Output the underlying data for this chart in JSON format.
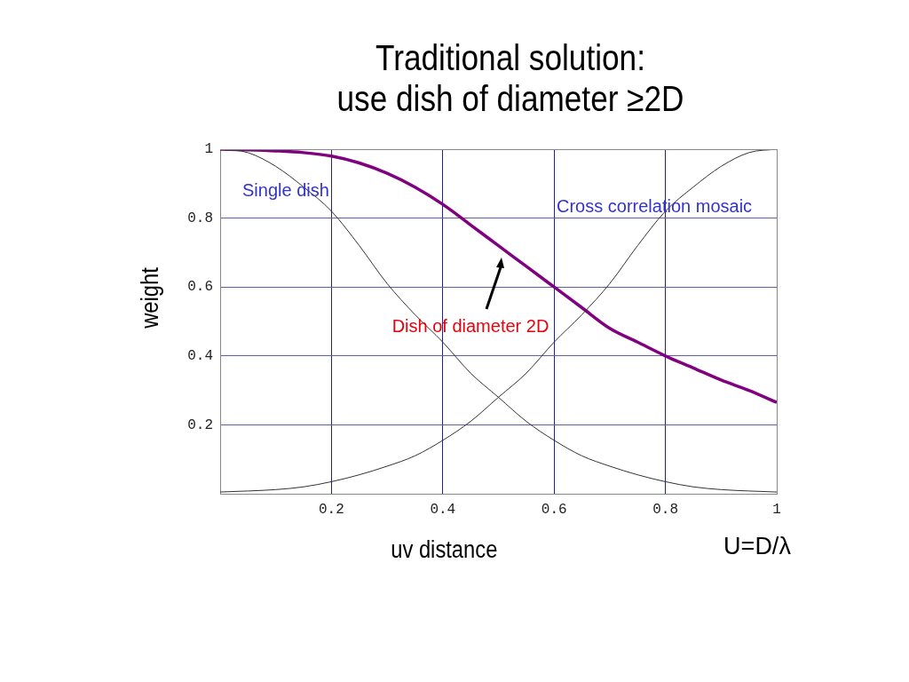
{
  "chart_data": {
    "type": "line",
    "title": "Traditional solution:\nuse dish of diameter ≥2D",
    "xlabel": "uv distance",
    "ylabel": "weight",
    "x": [
      0,
      0.05,
      0.1,
      0.15,
      0.2,
      0.25,
      0.3,
      0.35,
      0.4,
      0.45,
      0.5,
      0.55,
      0.6,
      0.65,
      0.7,
      0.75,
      0.8,
      0.85,
      0.9,
      0.95,
      1
    ],
    "series": [
      {
        "color": "#333333",
        "values": [
          1,
          0.99,
          0.95,
          0.89,
          0.82,
          0.72,
          0.61,
          0.52,
          0.44,
          0.35,
          0.28,
          0.21,
          0.155,
          0.11,
          0.08,
          0.055,
          0.035,
          0.02,
          0.012,
          0.008,
          0.005
        ]
      },
      {
        "color": "#333333",
        "values": [
          0.005,
          0.008,
          0.012,
          0.02,
          0.035,
          0.055,
          0.08,
          0.11,
          0.155,
          0.21,
          0.28,
          0.35,
          0.44,
          0.52,
          0.61,
          0.72,
          0.82,
          0.89,
          0.95,
          0.99,
          1
        ]
      },
      {
        "color": "#800080",
        "values": [
          1,
          0.998,
          0.995,
          0.99,
          0.98,
          0.96,
          0.93,
          0.89,
          0.84,
          0.78,
          0.72,
          0.66,
          0.6,
          0.54,
          0.48,
          0.44,
          0.4,
          0.365,
          0.33,
          0.3,
          0.265
        ]
      }
    ],
    "xlim": [
      0,
      1
    ],
    "xticks": [
      0.2,
      0.4,
      0.6,
      0.8,
      1
    ],
    "ylim": [
      0,
      1
    ],
    "yticks": [
      0.2,
      0.4,
      0.6,
      0.8,
      1
    ],
    "grid": true,
    "legend": false,
    "marker": "none",
    "line_style": "solid",
    "annotations": [
      "Single dish",
      "Cross correlation mosaic",
      "Dish of diameter 2D",
      "U=D/λ"
    ]
  }
}
